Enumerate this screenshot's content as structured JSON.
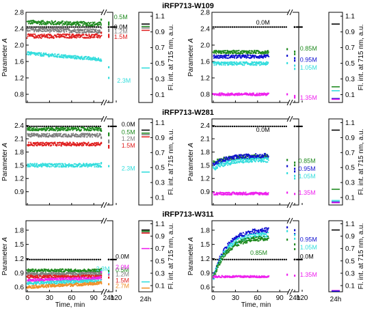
{
  "figure": {
    "ylabel_main": "Parameter A",
    "ylabel_main_italic": "A",
    "ylabel_side": "Fl. int. at 715 nm, a.u.",
    "xlabel": "Time, min",
    "side_xlabel": "24h"
  },
  "chart_data": [
    {
      "type": "scatter",
      "title": "iRFP713-W109",
      "panel": "left",
      "xlim": [
        0,
        130
      ],
      "ylim": [
        0.6,
        2.8
      ],
      "xticks": [
        "0",
        "30",
        "60",
        "90",
        "120",
        "24h"
      ],
      "yticks": [
        0.8,
        1.2,
        1.6,
        2.0,
        2.4,
        2.8
      ],
      "x_break_after": 100,
      "series": [
        {
          "name": "0.5M",
          "color": "#1f8a1f",
          "mean": 2.56,
          "noise": 0.05,
          "trend": -0.0005,
          "t_end": 100,
          "late_y": [
            2.62,
            2.55,
            2.5
          ]
        },
        {
          "name": "0.0M",
          "color": "#000000",
          "mean": 2.44,
          "noise": 0.0,
          "trend": 0,
          "t_end": 130,
          "dotted": true
        },
        {
          "name": "1.2M",
          "color": "#7f7f7f",
          "mean": 2.38,
          "noise": 0.05,
          "trend": -0.0004,
          "t_end": 100,
          "late_y": [
            2.42,
            2.38,
            2.34
          ]
        },
        {
          "name": "1.5M",
          "color": "#e02020",
          "mean": 2.22,
          "noise": 0.05,
          "trend": 0.0,
          "t_end": 100,
          "late_y": [
            2.3,
            2.25,
            2.2
          ]
        },
        {
          "name": "2.3M",
          "color": "#33dddd",
          "mean": 1.8,
          "noise": 0.04,
          "trend": -0.0015,
          "t_end": 100,
          "late_y": [
            1.62,
            1.46,
            1.2
          ]
        }
      ],
      "labels": [
        {
          "series": "0.5M",
          "text": "0.5M",
          "tx": 108,
          "ty": 2.68
        },
        {
          "series": "0.0M",
          "text": "0.0M",
          "tx": 108,
          "ty": 2.44
        },
        {
          "series": "1.2M",
          "text": "1.2M",
          "tx": 108,
          "ty": 2.33
        },
        {
          "series": "1.5M",
          "text": "1.5M",
          "tx": 108,
          "ty": 2.2
        },
        {
          "series": "2.3M",
          "text": "2.3M",
          "tx": 112,
          "ty": 1.13
        }
      ],
      "fluorescence": {
        "ylim": [
          0,
          1.15
        ],
        "yticks": [
          0.1,
          0.3,
          0.5,
          0.7,
          0.9,
          1.1
        ],
        "bars": [
          {
            "color": "#000000",
            "value": 1.0
          },
          {
            "color": "#1f8a1f",
            "value": 0.97
          },
          {
            "color": "#7f7f7f",
            "value": 0.95
          },
          {
            "color": "#e02020",
            "value": 0.92
          },
          {
            "color": "#33dddd",
            "value": 0.44
          }
        ]
      }
    },
    {
      "type": "scatter",
      "title": "",
      "panel": "right",
      "xlim": [
        0,
        130
      ],
      "ylim": [
        0.6,
        2.8
      ],
      "xticks": [
        "0",
        "30",
        "60",
        "90",
        "120",
        "24h"
      ],
      "yticks": [
        0.8,
        1.2,
        1.6,
        2.0,
        2.4,
        2.8
      ],
      "x_break_after": 100,
      "series": [
        {
          "name": "0.0M",
          "color": "#000000",
          "mean": 2.44,
          "noise": 0.0,
          "trend": 0,
          "t_end": 130,
          "dotted": true
        },
        {
          "name": "0.85M",
          "color": "#1f8a1f",
          "mean": 1.83,
          "noise": 0.04,
          "trend": 0,
          "t_end": 75,
          "late_y": [
            1.9,
            1.84,
            1.78
          ]
        },
        {
          "name": "0.95M",
          "color": "#1010d0",
          "mean": 1.72,
          "noise": 0.04,
          "trend": 0,
          "t_end": 75,
          "late_y": [
            1.74,
            1.68,
            1.62
          ]
        },
        {
          "name": "1.05M",
          "color": "#33dddd",
          "mean": 1.55,
          "noise": 0.04,
          "trend": 0,
          "t_end": 75,
          "late_y": [
            1.56,
            1.5,
            1.42
          ]
        },
        {
          "name": "1.35M",
          "color": "#ee22ee",
          "mean": 0.8,
          "noise": 0.03,
          "trend": 0,
          "t_end": 75,
          "late_y": [
            0.8,
            0.76,
            0.72
          ]
        }
      ],
      "labels": [
        {
          "series": "0.0M",
          "text": "0.0M",
          "tx": 58,
          "ty": 2.55
        },
        {
          "series": "0.85M",
          "text": "0.85M",
          "tx": 108,
          "ty": 1.92
        },
        {
          "series": "0.95M",
          "text": "0.95M",
          "tx": 108,
          "ty": 1.64
        },
        {
          "series": "1.05M",
          "text": "1.05M",
          "tx": 108,
          "ty": 1.45
        },
        {
          "series": "1.35M",
          "text": "1.35M",
          "tx": 108,
          "ty": 0.72
        }
      ],
      "fluorescence": {
        "ylim": [
          0,
          1.15
        ],
        "yticks": [
          0.1,
          0.3,
          0.5,
          0.7,
          0.9,
          1.1
        ],
        "bars": [
          {
            "color": "#000000",
            "value": 1.0
          },
          {
            "color": "#1f8a1f",
            "value": 0.2
          },
          {
            "color": "#33dddd",
            "value": 0.15
          },
          {
            "color": "#1010d0",
            "value": 0.05
          },
          {
            "color": "#ee22ee",
            "value": 0.04
          }
        ]
      }
    },
    {
      "type": "scatter",
      "title": "iRFP713-W281",
      "panel": "left",
      "xlim": [
        0,
        130
      ],
      "ylim": [
        0.6,
        2.55
      ],
      "xticks": [
        "0",
        "30",
        "60",
        "90",
        "120",
        "24h"
      ],
      "yticks": [
        0.9,
        1.2,
        1.5,
        1.8,
        2.1,
        2.4
      ],
      "x_break_after": 100,
      "series": [
        {
          "name": "0.0M",
          "color": "#000000",
          "mean": 2.38,
          "noise": 0.0,
          "trend": 0,
          "t_end": 130,
          "dotted": true
        },
        {
          "name": "0.5M",
          "color": "#1f8a1f",
          "mean": 2.32,
          "noise": 0.04,
          "trend": 0,
          "t_end": 100,
          "late_y": [
            2.28,
            2.22,
            2.18
          ]
        },
        {
          "name": "1.2M",
          "color": "#7f7f7f",
          "mean": 2.18,
          "noise": 0.04,
          "trend": 0,
          "t_end": 100,
          "late_y": [
            2.12,
            2.06,
            2.02
          ]
        },
        {
          "name": "1.5M",
          "color": "#e02020",
          "mean": 1.98,
          "noise": 0.04,
          "trend": 0,
          "t_end": 100,
          "late_y": [
            2.0,
            1.94,
            1.9
          ]
        },
        {
          "name": "2.3M",
          "color": "#33dddd",
          "mean": 1.5,
          "noise": 0.04,
          "trend": 0,
          "t_end": 100,
          "late_y": [
            1.55,
            1.48
          ]
        }
      ],
      "labels": [
        {
          "series": "0.0M",
          "text": "0.0M",
          "tx": 118,
          "ty": 2.43
        },
        {
          "series": "0.5M",
          "text": "0.5M",
          "tx": 118,
          "ty": 2.25
        },
        {
          "series": "1.2M",
          "text": "1.2M",
          "tx": 118,
          "ty": 2.1
        },
        {
          "series": "1.5M",
          "text": "1.5M",
          "tx": 118,
          "ty": 1.95
        },
        {
          "series": "2.3M",
          "text": "2.3M",
          "tx": 118,
          "ty": 1.43
        }
      ],
      "fluorescence": {
        "ylim": [
          0,
          1.15
        ],
        "yticks": [
          0.1,
          0.3,
          0.5,
          0.7,
          0.9,
          1.1
        ],
        "bars": [
          {
            "color": "#000000",
            "value": 1.0
          },
          {
            "color": "#1f8a1f",
            "value": 0.96
          },
          {
            "color": "#7f7f7f",
            "value": 0.94
          },
          {
            "color": "#e02020",
            "value": 0.91
          },
          {
            "color": "#33dddd",
            "value": 0.44
          }
        ]
      }
    },
    {
      "type": "scatter",
      "title": "",
      "panel": "right",
      "xlim": [
        0,
        130
      ],
      "ylim": [
        0.6,
        2.55
      ],
      "xticks": [
        "0",
        "30",
        "60",
        "90",
        "120",
        "24h"
      ],
      "yticks": [
        0.9,
        1.2,
        1.5,
        1.8,
        2.1,
        2.4
      ],
      "x_break_after": 100,
      "series": [
        {
          "name": "0.0M",
          "color": "#000000",
          "mean": 2.38,
          "noise": 0.0,
          "trend": 0,
          "t_end": 130,
          "dotted": true
        },
        {
          "name": "0.85M",
          "color": "#1f8a1f",
          "mean": 1.55,
          "noise": 0.05,
          "grow_to": 1.7,
          "t_end": 75,
          "late_y": [
            1.62,
            1.56,
            1.5
          ]
        },
        {
          "name": "0.95M",
          "color": "#1010d0",
          "mean": 1.5,
          "noise": 0.05,
          "grow_to": 1.72,
          "t_end": 75,
          "late_y": [
            1.48,
            1.42,
            1.36
          ]
        },
        {
          "name": "1.05M",
          "color": "#33dddd",
          "mean": 1.42,
          "noise": 0.05,
          "grow_to": 1.62,
          "t_end": 75,
          "late_y": [
            1.32,
            1.26,
            1.2
          ]
        },
        {
          "name": "1.35M",
          "color": "#ee22ee",
          "mean": 0.86,
          "noise": 0.03,
          "trend": 0,
          "t_end": 75,
          "late_y": [
            0.88,
            0.85
          ]
        }
      ],
      "labels": [
        {
          "series": "0.0M",
          "text": "0.0M",
          "tx": 58,
          "ty": 2.3
        },
        {
          "series": "0.85M",
          "text": "0.85M",
          "tx": 106,
          "ty": 1.6
        },
        {
          "series": "0.95M",
          "text": "0.95M",
          "tx": 106,
          "ty": 1.42
        },
        {
          "series": "1.05M",
          "text": "1.05M",
          "tx": 106,
          "ty": 1.25
        },
        {
          "series": "1.35M",
          "text": "1.35M",
          "tx": 106,
          "ty": 0.88
        }
      ],
      "fluorescence": {
        "ylim": [
          0,
          1.15
        ],
        "yticks": [
          0.1,
          0.3,
          0.5,
          0.7,
          0.9,
          1.1
        ],
        "bars": [
          {
            "color": "#000000",
            "value": 1.0
          },
          {
            "color": "#1f8a1f",
            "value": 0.21
          },
          {
            "color": "#33dddd",
            "value": 0.06
          },
          {
            "color": "#1010d0",
            "value": 0.04
          },
          {
            "color": "#ee22ee",
            "value": 0.03
          }
        ]
      }
    },
    {
      "type": "scatter",
      "title": "iRFP713-W311",
      "panel": "left",
      "xlim": [
        0,
        130
      ],
      "ylim": [
        0.5,
        2.0
      ],
      "xticks": [
        "0",
        "30",
        "60",
        "90",
        "120",
        "24h"
      ],
      "yticks": [
        0.6,
        0.9,
        1.2,
        1.5,
        1.8
      ],
      "x_break_after": 100,
      "series": [
        {
          "name": "0.0M",
          "color": "#000000",
          "mean": 1.18,
          "noise": 0.0,
          "trend": 0,
          "t_end": 130,
          "dotted": true
        },
        {
          "name": "0.5M",
          "color": "#1f8a1f",
          "mean": 0.95,
          "noise": 0.03,
          "trend": 0,
          "t_end": 100,
          "late_y": [
            0.98,
            0.94
          ]
        },
        {
          "name": "1.2M",
          "color": "#7f7f7f",
          "mean": 0.88,
          "noise": 0.03,
          "trend": 0,
          "t_end": 100,
          "late_y": [
            0.9,
            0.86
          ]
        },
        {
          "name": "1.5M",
          "color": "#e02020",
          "mean": 0.82,
          "noise": 0.03,
          "trend": 0,
          "t_end": 100,
          "late_y": [
            0.84,
            0.8
          ]
        },
        {
          "name": "2.0M",
          "color": "#ee22ee",
          "mean": 0.74,
          "noise": 0.03,
          "trend": 0.0005,
          "t_end": 100,
          "late_y": [
            0.92,
            0.88
          ]
        },
        {
          "name": "2.3M",
          "color": "#33dddd",
          "mean": 0.68,
          "noise": 0.03,
          "trend": 0.0005,
          "t_end": 100,
          "late_y": [
            0.96,
            0.9
          ]
        },
        {
          "name": "2.7M",
          "color": "#f0902a",
          "mean": 0.6,
          "noise": 0.03,
          "trend": 0.0008,
          "t_end": 100,
          "late_y": [
            0.7,
            0.66
          ]
        }
      ],
      "labels": [
        {
          "series": "0.0M",
          "text": "0.0M",
          "tx": 110,
          "ty": 1.24
        },
        {
          "series": "2.3M",
          "text": "2.3M",
          "tx": 93,
          "ty": 0.98
        },
        {
          "series": "0.5M",
          "text": "0.5M",
          "tx": 110,
          "ty": 0.96
        },
        {
          "series": "1.2M",
          "text": "1.2M",
          "tx": 110,
          "ty": 0.87
        },
        {
          "series": "2.0M",
          "text": "2.0M",
          "tx": 110,
          "ty": 1.02
        },
        {
          "series": "1.5M",
          "text": "1.5M",
          "tx": 110,
          "ty": 0.74
        },
        {
          "series": "2.7M",
          "text": "2.7M",
          "tx": 110,
          "ty": 0.62
        }
      ],
      "fluorescence": {
        "ylim": [
          0,
          1.15
        ],
        "yticks": [
          0.1,
          0.3,
          0.5,
          0.7,
          0.9,
          1.1
        ],
        "bars": [
          {
            "color": "#000000",
            "value": 1.0
          },
          {
            "color": "#1f8a1f",
            "value": 0.98
          },
          {
            "color": "#7f7f7f",
            "value": 0.96
          },
          {
            "color": "#e02020",
            "value": 0.95
          },
          {
            "color": "#ee22ee",
            "value": 0.7
          },
          {
            "color": "#33dddd",
            "value": 0.16
          },
          {
            "color": "#f0902a",
            "value": 0.06
          }
        ]
      }
    },
    {
      "type": "scatter",
      "title": "",
      "panel": "right",
      "xlim": [
        0,
        130
      ],
      "ylim": [
        0.5,
        2.0
      ],
      "xticks": [
        "0",
        "30",
        "60",
        "90",
        "120",
        "24h"
      ],
      "yticks": [
        0.6,
        0.9,
        1.2,
        1.5,
        1.8
      ],
      "x_break_after": 100,
      "series": [
        {
          "name": "0.0M",
          "color": "#000000",
          "mean": 1.18,
          "noise": 0.0,
          "trend": 0,
          "t_end": 130,
          "dotted": true
        },
        {
          "name": "0.95M",
          "color": "#1010d0",
          "mean": 0.8,
          "noise": 0.05,
          "grow_to": 1.82,
          "t_end": 75,
          "late_y": [
            1.86,
            1.8,
            1.72
          ]
        },
        {
          "name": "1.05M",
          "color": "#33dddd",
          "mean": 0.8,
          "noise": 0.05,
          "grow_to": 1.72,
          "t_end": 75,
          "late_y": [
            1.78,
            1.7,
            1.62
          ]
        },
        {
          "name": "0.85M",
          "color": "#1f8a1f",
          "mean": 0.8,
          "noise": 0.05,
          "grow_to": 1.65,
          "t_end": 75,
          "late_y": [
            1.6,
            1.5,
            1.4
          ]
        },
        {
          "name": "1.35M",
          "color": "#ee22ee",
          "mean": 0.82,
          "noise": 0.02,
          "trend": 0,
          "t_end": 75,
          "late_y": [
            0.86,
            0.84
          ]
        }
      ],
      "labels": [
        {
          "series": "0.95M",
          "text": "0.95M",
          "tx": 108,
          "ty": 1.6
        },
        {
          "series": "1.05M",
          "text": "1.05M",
          "tx": 108,
          "ty": 1.44
        },
        {
          "series": "0.0M",
          "text": "0.0M",
          "tx": 108,
          "ty": 1.24
        },
        {
          "series": "0.85M",
          "text": "0.85M",
          "tx": 50,
          "ty": 1.32
        },
        {
          "series": "1.35M",
          "text": "1.35M",
          "tx": 108,
          "ty": 0.86
        }
      ],
      "fluorescence": {
        "ylim": [
          0,
          1.15
        ],
        "yticks": [
          0.1,
          0.3,
          0.5,
          0.7,
          0.9,
          1.1
        ],
        "bars": [
          {
            "color": "#000000",
            "value": 1.0
          },
          {
            "color": "#ee22ee",
            "value": 0.02
          },
          {
            "color": "#1010d0",
            "value": 0.01
          }
        ]
      }
    }
  ]
}
